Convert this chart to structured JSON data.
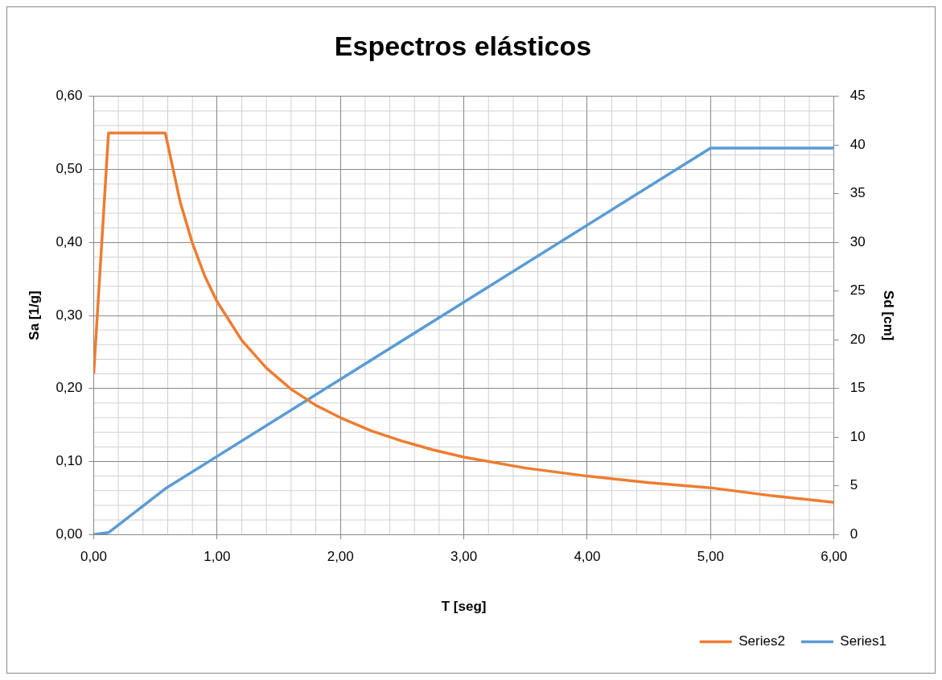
{
  "chart_data": {
    "type": "line",
    "title": "Espectros elásticos",
    "xlabel": "T [seg]",
    "ylabel": "Sa [1/g]",
    "y2label": "Sd [cm]",
    "xlim": [
      0,
      6
    ],
    "xticks": [
      {
        "value": 0,
        "label": "0,00"
      },
      {
        "value": 1,
        "label": "1,00"
      },
      {
        "value": 2,
        "label": "2,00"
      },
      {
        "value": 3,
        "label": "3,00"
      },
      {
        "value": 4,
        "label": "4,00"
      },
      {
        "value": 5,
        "label": "5,00"
      },
      {
        "value": 6,
        "label": "6,00"
      }
    ],
    "ylim": [
      0,
      0.6
    ],
    "yticks": [
      {
        "value": 0,
        "label": "0,00"
      },
      {
        "value": 0.1,
        "label": "0,10"
      },
      {
        "value": 0.2,
        "label": "0,20"
      },
      {
        "value": 0.3,
        "label": "0,30"
      },
      {
        "value": 0.4,
        "label": "0,40"
      },
      {
        "value": 0.5,
        "label": "0,50"
      },
      {
        "value": 0.6,
        "label": "0,60"
      }
    ],
    "y2lim": [
      0,
      45
    ],
    "y2ticks": [
      0,
      5,
      10,
      15,
      20,
      25,
      30,
      35,
      40,
      45
    ],
    "grid": true,
    "legend": "bottom right",
    "marker": "none",
    "line_style": "solid",
    "series": [
      {
        "name": "Series2",
        "color": "#ed7d31",
        "x": [
          0,
          0.12,
          0.58,
          0.7,
          0.8,
          0.9,
          1.0,
          1.2,
          1.4,
          1.6,
          1.8,
          2.0,
          2.25,
          2.5,
          2.75,
          3.0,
          3.5,
          4.0,
          4.5,
          5.0,
          5.5,
          6.0
        ],
        "values": [
          0.22,
          0.55,
          0.55,
          0.456,
          0.399,
          0.354,
          0.319,
          0.266,
          0.228,
          0.199,
          0.177,
          0.16,
          0.142,
          0.128,
          0.116,
          0.106,
          0.091,
          0.08,
          0.071,
          0.064,
          0.053,
          0.044
        ]
      },
      {
        "name": "Series1",
        "color": "#5b9bd5",
        "axis": "y2",
        "x": [
          0,
          0.12,
          0.58,
          5.0,
          6.0
        ],
        "values": [
          0,
          0.2,
          4.7,
          39.7,
          39.7
        ]
      }
    ]
  }
}
